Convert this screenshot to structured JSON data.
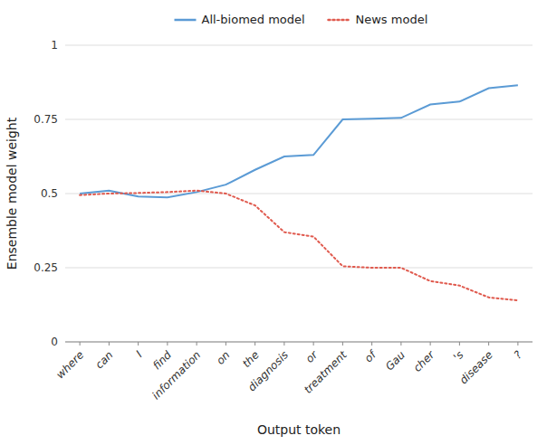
{
  "chart_data": {
    "type": "line",
    "categories": [
      "where",
      "can",
      "I",
      "find",
      "information",
      "on",
      "the",
      "diagnosis",
      "or",
      "treatment",
      "of",
      "Gau",
      "cher",
      "'s",
      "disease",
      "?"
    ],
    "series": [
      {
        "name": "All-biomed model",
        "color": "#5b9bd5",
        "line_style": "solid",
        "values": [
          0.5,
          0.51,
          0.49,
          0.487,
          0.505,
          0.53,
          0.58,
          0.625,
          0.63,
          0.75,
          0.752,
          0.755,
          0.8,
          0.81,
          0.855,
          0.865
        ]
      },
      {
        "name": "News model",
        "color": "#e05a4e",
        "line_style": "dotted",
        "values": [
          0.495,
          0.5,
          0.502,
          0.505,
          0.51,
          0.5,
          0.46,
          0.37,
          0.355,
          0.255,
          0.25,
          0.25,
          0.205,
          0.19,
          0.15,
          0.14
        ]
      }
    ],
    "xlabel": "Output token",
    "ylabel": "Ensemble model weight",
    "ylim": [
      0,
      1
    ],
    "yticks": [
      0,
      0.25,
      0.5,
      0.75,
      1
    ],
    "grid": true,
    "legend": "top"
  }
}
